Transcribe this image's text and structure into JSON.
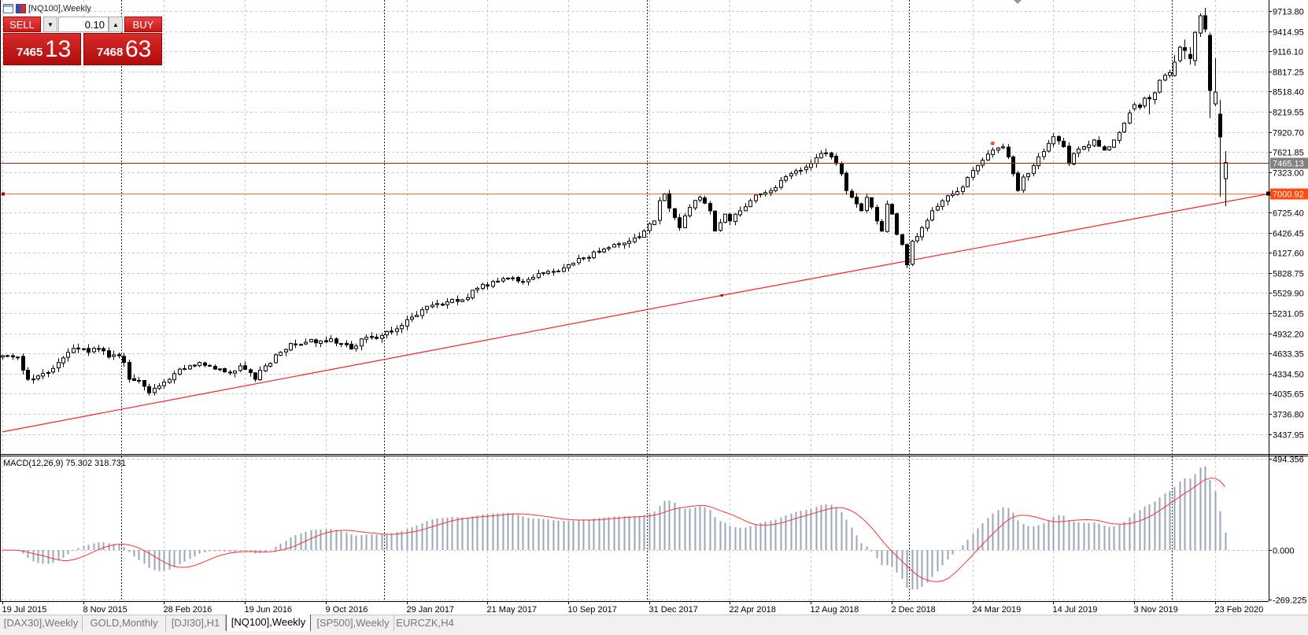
{
  "window": {
    "title": "[NQ100],Weekly"
  },
  "trade_panel": {
    "sell_label": "SELL",
    "buy_label": "BUY",
    "lot_value": "0.10",
    "sell_price_prefix": "7465",
    "sell_price_big": "13",
    "buy_price_prefix": "7468",
    "buy_price_big": "63"
  },
  "tabs": [
    {
      "label": "[DAX30],Weekly",
      "active": false
    },
    {
      "label": "GOLD,Monthly",
      "active": false
    },
    {
      "label": "[DJI30],H1",
      "active": false
    },
    {
      "label": "[NQ100],Weekly",
      "active": true
    },
    {
      "label": "[SP500],Weekly",
      "active": false
    },
    {
      "label": "EURCZK,H4",
      "active": false
    }
  ],
  "colors": {
    "bull_body": "#ffffff",
    "bear_body": "#000000",
    "bid_line": "#c81818",
    "level_line": "#ff6a30",
    "trendline": "#ff2020",
    "macd_bars": "#9aa6ba",
    "macd_signal": "#ff3030",
    "bid_label_bg": "#808080",
    "level_label_bg": "#ff4a10"
  },
  "chart_data": {
    "type": "candlestick",
    "symbol": "[NQ100]",
    "timeframe": "Weekly",
    "price_axis": {
      "max": 9713.8,
      "step": 298.85,
      "labels": [
        "9713.80",
        "9414.95",
        "9116.10",
        "8817.25",
        "8518.40",
        "8219.55",
        "7920.70",
        "7621.85",
        "7323.00",
        "6725.40",
        "6426.45",
        "6127.60",
        "5828.75",
        "5529.90",
        "5231.05",
        "4932.20",
        "4633.35",
        "4334.50",
        "4035.65",
        "3736.80",
        "3437.95"
      ],
      "label_values": [
        9713.8,
        9414.95,
        9116.1,
        8817.25,
        8518.4,
        8219.55,
        7920.7,
        7621.85,
        7323.0,
        6725.4,
        6426.45,
        6127.6,
        5828.75,
        5529.9,
        5231.05,
        4932.2,
        4633.35,
        4334.5,
        4035.65,
        3736.8,
        3437.95
      ]
    },
    "bid_line": {
      "value": 7465.13,
      "label": "7465.13"
    },
    "level_line": {
      "value": 7000.92,
      "label": "7000.92"
    },
    "trendline": [
      [
        0,
        3470
      ],
      [
        142.4,
        5495
      ],
      [
        250.6,
        7000.92
      ]
    ],
    "date_labels": [
      {
        "week": 0,
        "label": "19 Jul 2015"
      },
      {
        "week": 16,
        "label": "8 Nov 2015"
      },
      {
        "week": 32,
        "label": "28 Feb 2016"
      },
      {
        "week": 48,
        "label": "19 Jun 2016"
      },
      {
        "week": 64,
        "label": "9 Oct 2016"
      },
      {
        "week": 80,
        "label": "29 Jan 2017"
      },
      {
        "week": 96,
        "label": "21 May 2017"
      },
      {
        "week": 112,
        "label": "10 Sep 2017"
      },
      {
        "week": 128,
        "label": "31 Dec 2017"
      },
      {
        "week": 144,
        "label": "22 Apr 2018"
      },
      {
        "week": 160,
        "label": "12 Aug 2018"
      },
      {
        "week": 176,
        "label": "2 Dec 2018"
      },
      {
        "week": 192,
        "label": "24 Mar 2019"
      },
      {
        "week": 208,
        "label": "14 Jul 2019"
      },
      {
        "week": 224,
        "label": "3 Nov 2019"
      },
      {
        "week": 240,
        "label": "23 Feb 2020"
      }
    ],
    "year_separators_week": [
      24,
      76,
      128,
      180,
      232
    ],
    "close_anchors": [
      [
        0,
        4600
      ],
      [
        3,
        4580
      ],
      [
        5,
        4250
      ],
      [
        7,
        4300
      ],
      [
        9,
        4350
      ],
      [
        11,
        4500
      ],
      [
        13,
        4650
      ],
      [
        15,
        4700
      ],
      [
        17,
        4650
      ],
      [
        19,
        4700
      ],
      [
        21,
        4580
      ],
      [
        23,
        4600
      ],
      [
        24,
        4500
      ],
      [
        25,
        4250
      ],
      [
        27,
        4230
      ],
      [
        29,
        4050
      ],
      [
        31,
        4150
      ],
      [
        33,
        4250
      ],
      [
        35,
        4400
      ],
      [
        37,
        4450
      ],
      [
        39,
        4500
      ],
      [
        41,
        4450
      ],
      [
        43,
        4400
      ],
      [
        45,
        4350
      ],
      [
        47,
        4450
      ],
      [
        49,
        4350
      ],
      [
        50,
        4250
      ],
      [
        52,
        4450
      ],
      [
        55,
        4650
      ],
      [
        57,
        4780
      ],
      [
        60,
        4800
      ],
      [
        63,
        4820
      ],
      [
        65,
        4850
      ],
      [
        67,
        4780
      ],
      [
        69,
        4700
      ],
      [
        71,
        4850
      ],
      [
        73,
        4870
      ],
      [
        75,
        4900
      ],
      [
        77,
        4950
      ],
      [
        79,
        5050
      ],
      [
        82,
        5200
      ],
      [
        85,
        5350
      ],
      [
        88,
        5400
      ],
      [
        91,
        5430
      ],
      [
        94,
        5600
      ],
      [
        97,
        5700
      ],
      [
        100,
        5750
      ],
      [
        103,
        5700
      ],
      [
        106,
        5820
      ],
      [
        109,
        5850
      ],
      [
        112,
        5950
      ],
      [
        115,
        6050
      ],
      [
        118,
        6150
      ],
      [
        121,
        6250
      ],
      [
        124,
        6300
      ],
      [
        127,
        6450
      ],
      [
        129,
        6600
      ],
      [
        130,
        6900
      ],
      [
        131,
        7000
      ],
      [
        133,
        6650
      ],
      [
        134,
        6500
      ],
      [
        136,
        6800
      ],
      [
        138,
        6950
      ],
      [
        140,
        6750
      ],
      [
        141,
        6450
      ],
      [
        143,
        6700
      ],
      [
        144,
        6600
      ],
      [
        146,
        6750
      ],
      [
        148,
        6900
      ],
      [
        150,
        7000
      ],
      [
        152,
        7050
      ],
      [
        154,
        7200
      ],
      [
        156,
        7300
      ],
      [
        158,
        7350
      ],
      [
        160,
        7450
      ],
      [
        162,
        7600
      ],
      [
        164,
        7550
      ],
      [
        165,
        7450
      ],
      [
        166,
        7300
      ],
      [
        167,
        7050
      ],
      [
        168,
        6950
      ],
      [
        170,
        6750
      ],
      [
        171,
        6950
      ],
      [
        173,
        6600
      ],
      [
        174,
        6450
      ],
      [
        175,
        6850
      ],
      [
        176,
        6700
      ],
      [
        177,
        6400
      ],
      [
        178,
        6250
      ],
      [
        179,
        5950
      ],
      [
        180,
        6300
      ],
      [
        182,
        6500
      ],
      [
        184,
        6750
      ],
      [
        186,
        6900
      ],
      [
        188,
        7000
      ],
      [
        190,
        7100
      ],
      [
        192,
        7350
      ],
      [
        194,
        7500
      ],
      [
        196,
        7650
      ],
      [
        198,
        7700
      ],
      [
        199,
        7550
      ],
      [
        200,
        7300
      ],
      [
        201,
        7050
      ],
      [
        202,
        7250
      ],
      [
        203,
        7300
      ],
      [
        205,
        7550
      ],
      [
        207,
        7750
      ],
      [
        208,
        7850
      ],
      [
        210,
        7700
      ],
      [
        211,
        7450
      ],
      [
        212,
        7600
      ],
      [
        214,
        7700
      ],
      [
        216,
        7800
      ],
      [
        218,
        7650
      ],
      [
        220,
        7800
      ],
      [
        222,
        8050
      ],
      [
        223,
        8200
      ]
    ],
    "recent_candles": [
      {
        "week": 224,
        "o": 8265,
        "h": 8360,
        "l": 8230,
        "c": 8325
      },
      {
        "week": 225,
        "o": 8320,
        "h": 8345,
        "l": 8250,
        "c": 8285
      },
      {
        "week": 226,
        "o": 8305,
        "h": 8440,
        "l": 8270,
        "c": 8420
      },
      {
        "week": 227,
        "o": 8430,
        "h": 8470,
        "l": 8180,
        "c": 8410
      },
      {
        "week": 228,
        "o": 8400,
        "h": 8520,
        "l": 8330,
        "c": 8500
      },
      {
        "week": 229,
        "o": 8510,
        "h": 8700,
        "l": 8490,
        "c": 8686
      },
      {
        "week": 230,
        "o": 8690,
        "h": 8790,
        "l": 8670,
        "c": 8760
      },
      {
        "week": 231,
        "o": 8760,
        "h": 8840,
        "l": 8720,
        "c": 8800
      },
      {
        "week": 232,
        "o": 8757,
        "h": 9060,
        "l": 8740,
        "c": 8955
      },
      {
        "week": 233,
        "o": 8978,
        "h": 9200,
        "l": 8950,
        "c": 9176
      },
      {
        "week": 234,
        "o": 9170,
        "h": 9290,
        "l": 9000,
        "c": 9130
      },
      {
        "week": 235,
        "o": 9070,
        "h": 9180,
        "l": 8920,
        "c": 9010
      },
      {
        "week": 236,
        "o": 8978,
        "h": 9410,
        "l": 8900,
        "c": 9398
      },
      {
        "week": 237,
        "o": 9387,
        "h": 9680,
        "l": 9330,
        "c": 9644
      },
      {
        "week": 238,
        "o": 9644,
        "h": 9760,
        "l": 9400,
        "c": 9445
      },
      {
        "week": 239,
        "o": 9352,
        "h": 9390,
        "l": 8126,
        "c": 8535
      },
      {
        "week": 240,
        "o": 8336,
        "h": 9013,
        "l": 8300,
        "c": 8511
      },
      {
        "week": 241,
        "o": 8184,
        "h": 8395,
        "l": 6959,
        "c": 7846
      },
      {
        "week": 242,
        "o": 7227,
        "h": 7636,
        "l": 6819,
        "c": 7465
      }
    ],
    "macd": {
      "title": "MACD(12,26,9) 75.302 318.731",
      "fast": 12,
      "slow": 26,
      "signal": 9,
      "main_value": 75.302,
      "signal_value": 318.731,
      "axis_labels": [
        "494.356",
        "0.000",
        "-269.225"
      ],
      "axis_values": [
        494.356,
        0,
        -269.225
      ]
    }
  }
}
